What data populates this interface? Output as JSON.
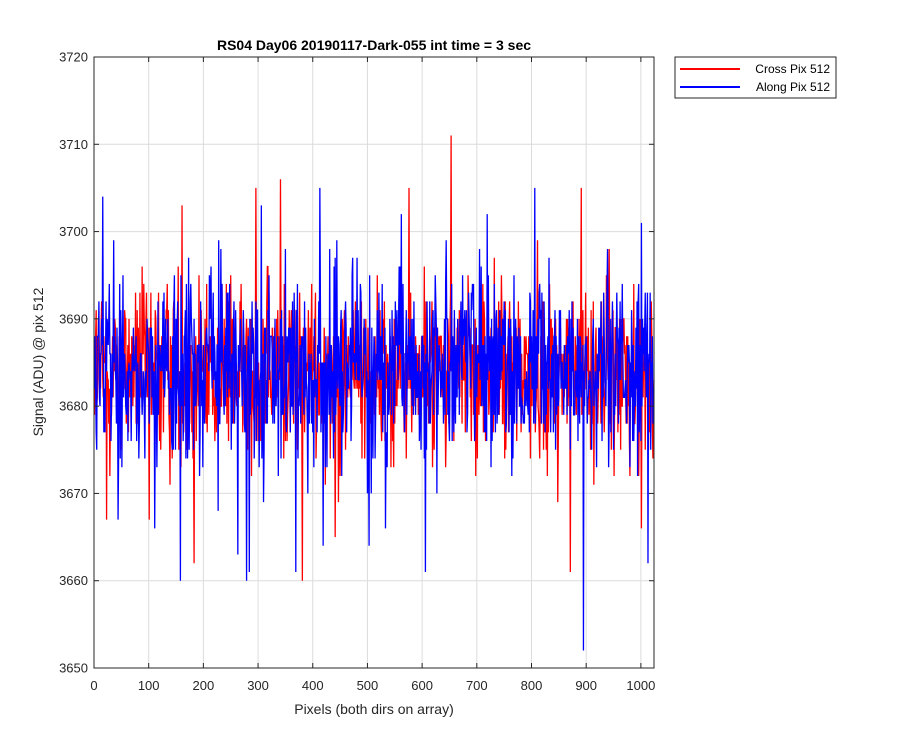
{
  "chart_data": {
    "type": "line",
    "title": "RS04 Day06 20190117-Dark-055 int time = 3 sec",
    "xlabel": "Pixels (both dirs on array)",
    "ylabel": "Signal (ADU) @ pix 512",
    "xlim": [
      0,
      1024
    ],
    "ylim": [
      3650,
      3720
    ],
    "xticks": [
      0,
      100,
      200,
      300,
      400,
      500,
      600,
      700,
      800,
      900,
      1000
    ],
    "yticks": [
      3650,
      3660,
      3670,
      3680,
      3690,
      3700,
      3710,
      3720
    ],
    "grid": true,
    "legend_position": "outside-top-right",
    "colors": {
      "cross": "#ff0000",
      "along": "#0000ff",
      "grid": "#dcdcdc",
      "axis": "#262626"
    },
    "series": [
      {
        "name": "Cross Pix 512",
        "color": "#ff0000",
        "mean": 3684,
        "spread": 5,
        "n_points": 1024,
        "notable_points": [
          {
            "x": 22,
            "y": 3667
          },
          {
            "x": 100,
            "y": 3667
          },
          {
            "x": 160,
            "y": 3703
          },
          {
            "x": 182,
            "y": 3662
          },
          {
            "x": 220,
            "y": 3676
          },
          {
            "x": 295,
            "y": 3705
          },
          {
            "x": 340,
            "y": 3706
          },
          {
            "x": 380,
            "y": 3660
          },
          {
            "x": 440,
            "y": 3665
          },
          {
            "x": 575,
            "y": 3705
          },
          {
            "x": 652,
            "y": 3711
          },
          {
            "x": 870,
            "y": 3661
          },
          {
            "x": 890,
            "y": 3705
          },
          {
            "x": 1000,
            "y": 3666
          }
        ]
      },
      {
        "name": "Along Pix 512",
        "color": "#0000ff",
        "mean": 3684,
        "spread": 5.5,
        "n_points": 1024,
        "notable_points": [
          {
            "x": 15,
            "y": 3704
          },
          {
            "x": 35,
            "y": 3699
          },
          {
            "x": 110,
            "y": 3666
          },
          {
            "x": 157,
            "y": 3660
          },
          {
            "x": 262,
            "y": 3663
          },
          {
            "x": 278,
            "y": 3660
          },
          {
            "x": 283,
            "y": 3661
          },
          {
            "x": 305,
            "y": 3703
          },
          {
            "x": 368,
            "y": 3661
          },
          {
            "x": 412,
            "y": 3705
          },
          {
            "x": 418,
            "y": 3664
          },
          {
            "x": 502,
            "y": 3664
          },
          {
            "x": 605,
            "y": 3661
          },
          {
            "x": 718,
            "y": 3702
          },
          {
            "x": 805,
            "y": 3705
          },
          {
            "x": 894,
            "y": 3652
          },
          {
            "x": 1000,
            "y": 3701
          },
          {
            "x": 1012,
            "y": 3662
          }
        ]
      }
    ]
  }
}
